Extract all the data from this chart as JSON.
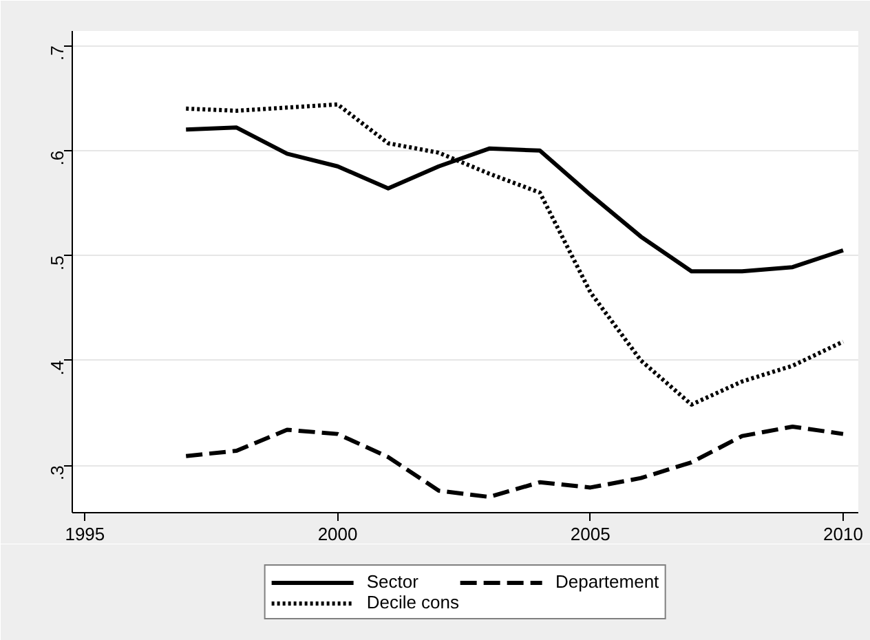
{
  "chart_data": {
    "type": "line",
    "x": [
      1997,
      1998,
      1999,
      2000,
      2001,
      2002,
      2003,
      2004,
      2005,
      2006,
      2007,
      2008,
      2009,
      2010
    ],
    "series": [
      {
        "name": "Sector",
        "color": "#000000",
        "line_style": "solid",
        "values": [
          0.62,
          0.622,
          0.597,
          0.585,
          0.564,
          0.585,
          0.602,
          0.6,
          0.558,
          0.518,
          0.485,
          0.485,
          0.489,
          0.505
        ]
      },
      {
        "name": "Decile cons",
        "color": "#000000",
        "line_style": "dotted",
        "values": [
          0.64,
          0.638,
          0.641,
          0.644,
          0.607,
          0.598,
          0.578,
          0.56,
          0.465,
          0.4,
          0.358,
          0.38,
          0.395,
          0.418
        ]
      },
      {
        "name": "Departement",
        "color": "#000000",
        "line_style": "dashed",
        "values": [
          0.309,
          0.314,
          0.334,
          0.33,
          0.308,
          0.276,
          0.27,
          0.284,
          0.279,
          0.288,
          0.303,
          0.328,
          0.337,
          0.33
        ]
      }
    ],
    "xlim": [
      1994.75,
      2010.3
    ],
    "ylim": [
      0.255,
      0.714
    ],
    "xticks": [
      1995,
      2000,
      2005,
      2010
    ],
    "yticks": [
      {
        "value": 0.3,
        "label": ".3"
      },
      {
        "value": 0.4,
        "label": ".4"
      },
      {
        "value": 0.5,
        "label": ".5"
      },
      {
        "value": 0.6,
        "label": ".6"
      },
      {
        "value": 0.7,
        "label": ".7"
      }
    ],
    "grid": "y",
    "legend": "bottom",
    "marker": "none"
  }
}
